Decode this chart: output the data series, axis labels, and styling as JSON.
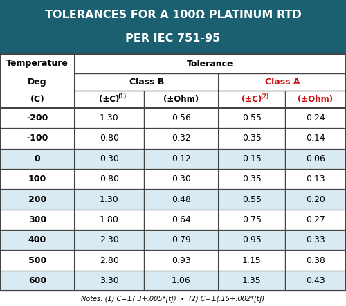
{
  "title_line1": "TOLERANCES FOR A 100Ω PLATINUM RTD",
  "title_line2": "PER IEC 751-95",
  "title_bg": "#1a6070",
  "title_color": "#ffffff",
  "temp_col": [
    "-200",
    "-100",
    "0",
    "100",
    "200",
    "300",
    "400",
    "500",
    "600"
  ],
  "class_b_c": [
    "1.30",
    "0.80",
    "0.30",
    "0.80",
    "1.30",
    "1.80",
    "2.30",
    "2.80",
    "3.30"
  ],
  "class_b_ohm": [
    "0.56",
    "0.32",
    "0.12",
    "0.30",
    "0.48",
    "0.64",
    "0.79",
    "0.93",
    "1.06"
  ],
  "class_a_c": [
    "0.55",
    "0.35",
    "0.15",
    "0.35",
    "0.55",
    "0.75",
    "0.95",
    "1.15",
    "1.35"
  ],
  "class_a_ohm": [
    "0.24",
    "0.14",
    "0.06",
    "0.13",
    "0.20",
    "0.27",
    "0.33",
    "0.38",
    "0.43"
  ],
  "note": "Notes: (1) C=±(.3+.005*[t])  •  (2) C=±(.15+.002*[t])",
  "row_bg_light": "#daeaf2",
  "row_bg_white": "#ffffff",
  "class_a_color": "#cc1111",
  "border_color": "#444444",
  "row_alternating": [
    0,
    0,
    1,
    0,
    1,
    0,
    1,
    0,
    1
  ]
}
